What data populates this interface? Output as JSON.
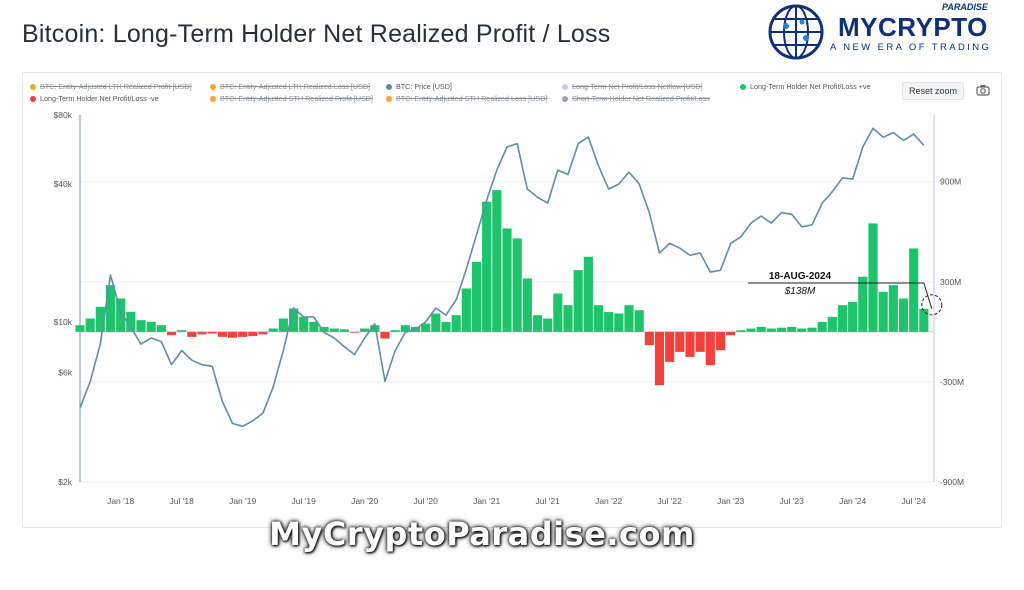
{
  "page": {
    "title": "Bitcoin: Long-Term Holder Net Realized Profit / Loss",
    "watermark": "MyCryptoParadise.com",
    "reset_zoom": "Reset zoom",
    "camera_icon": "camera-icon"
  },
  "brand": {
    "name": "MYCRYPTO",
    "name_top": "PARADISE",
    "tagline": "A NEW ERA OF TRADING",
    "icon": "globe-circuit-icon",
    "color": "#0f2f7a"
  },
  "legend": [
    {
      "label": "BTC: Entity-Adjusted LTH Realized Profit [USD]",
      "color": "#f5a623",
      "hidden": true
    },
    {
      "label": "BTC: Entity-Adjusted LTH Realized Loss [USD]",
      "color": "#f5a623",
      "hidden": true
    },
    {
      "label": "BTC: Price [USD]",
      "color": "#5f8ea6",
      "hidden": false
    },
    {
      "label": "Long-Term Net Profit/Loss Netflow [USD]",
      "color": "#c9c9f0",
      "hidden": true
    },
    {
      "label": "Long-Term Holder Net Profit/Loss +ve",
      "color": "#1ec46b",
      "hidden": false
    },
    {
      "label": "Long-Term Holder Net Profit/Loss -ve",
      "color": "#f0413c",
      "hidden": false
    },
    {
      "label": "BTC: Entity-Adjusted STH Realized Profit [USD]",
      "color": "#f5a623",
      "hidden": true
    },
    {
      "label": "BTC: Entity-Adjusted STH Realized Loss [USD]",
      "color": "#f5a623",
      "hidden": true
    },
    {
      "label": "Short-Term Holder Net Realized Profit/Loss",
      "color": "#a0a4aa",
      "hidden": true
    }
  ],
  "chart_data": {
    "type": "line+bar",
    "x_ticks": [
      "Jan '18",
      "Jul '18",
      "Jan '19",
      "Jul '19",
      "Jan '20",
      "Jul '20",
      "Jan '21",
      "Jul '21",
      "Jan '22",
      "Jul '22",
      "Jan '23",
      "Jul '23",
      "Jan '24",
      "Jul '24"
    ],
    "x_range": [
      "2017-09",
      "2024-09"
    ],
    "left_axis": {
      "scale": "log",
      "ticks": [
        "$80k",
        "$40k",
        "$10k",
        "$6k",
        "$2k"
      ],
      "tick_values": [
        80000,
        40000,
        10000,
        6000,
        2000
      ],
      "range": [
        2000,
        80000
      ]
    },
    "right_axis": {
      "scale": "linear",
      "ticks": [
        "900M",
        "300M",
        "-300M",
        "-900M"
      ],
      "tick_values": [
        900,
        300,
        -300,
        -900
      ],
      "range": [
        -900,
        1300
      ],
      "unit": "M USD"
    },
    "annotation": {
      "date": "18-AUG-2024",
      "value": "$138M",
      "value_num": 138
    },
    "price_series": {
      "name": "BTC: Price [USD]",
      "color": "#5f8ea6",
      "points": [
        [
          "2017-09",
          4200
        ],
        [
          "2017-10",
          5500
        ],
        [
          "2017-11",
          8000
        ],
        [
          "2017-12",
          16000
        ],
        [
          "2018-01",
          11000
        ],
        [
          "2018-02",
          9500
        ],
        [
          "2018-03",
          8000
        ],
        [
          "2018-04",
          8500
        ],
        [
          "2018-05",
          8200
        ],
        [
          "2018-06",
          6500
        ],
        [
          "2018-07",
          7500
        ],
        [
          "2018-08",
          6800
        ],
        [
          "2018-09",
          6500
        ],
        [
          "2018-10",
          6400
        ],
        [
          "2018-11",
          4500
        ],
        [
          "2018-12",
          3600
        ],
        [
          "2019-01",
          3500
        ],
        [
          "2019-02",
          3700
        ],
        [
          "2019-03",
          4000
        ],
        [
          "2019-04",
          5200
        ],
        [
          "2019-05",
          7500
        ],
        [
          "2019-06",
          11500
        ],
        [
          "2019-07",
          10500
        ],
        [
          "2019-08",
          10500
        ],
        [
          "2019-09",
          9000
        ],
        [
          "2019-10",
          8500
        ],
        [
          "2019-11",
          7800
        ],
        [
          "2019-12",
          7200
        ],
        [
          "2020-01",
          8500
        ],
        [
          "2020-02",
          9800
        ],
        [
          "2020-03",
          5500
        ],
        [
          "2020-04",
          7500
        ],
        [
          "2020-05",
          9000
        ],
        [
          "2020-06",
          9300
        ],
        [
          "2020-07",
          10000
        ],
        [
          "2020-08",
          11500
        ],
        [
          "2020-09",
          10700
        ],
        [
          "2020-10",
          12500
        ],
        [
          "2020-11",
          17000
        ],
        [
          "2020-12",
          24000
        ],
        [
          "2021-01",
          34000
        ],
        [
          "2021-02",
          46000
        ],
        [
          "2021-03",
          58000
        ],
        [
          "2021-04",
          60000
        ],
        [
          "2021-05",
          38000
        ],
        [
          "2021-06",
          35000
        ],
        [
          "2021-07",
          33000
        ],
        [
          "2021-08",
          46000
        ],
        [
          "2021-09",
          44000
        ],
        [
          "2021-10",
          60000
        ],
        [
          "2021-11",
          64000
        ],
        [
          "2021-12",
          48000
        ],
        [
          "2022-01",
          38000
        ],
        [
          "2022-02",
          40000
        ],
        [
          "2022-03",
          45000
        ],
        [
          "2022-04",
          40000
        ],
        [
          "2022-05",
          30000
        ],
        [
          "2022-06",
          20000
        ],
        [
          "2022-07",
          22000
        ],
        [
          "2022-08",
          21000
        ],
        [
          "2022-09",
          19500
        ],
        [
          "2022-10",
          20000
        ],
        [
          "2022-11",
          16500
        ],
        [
          "2022-12",
          16800
        ],
        [
          "2023-01",
          22000
        ],
        [
          "2023-02",
          23500
        ],
        [
          "2023-03",
          27000
        ],
        [
          "2023-04",
          29000
        ],
        [
          "2023-05",
          27000
        ],
        [
          "2023-06",
          30000
        ],
        [
          "2023-07",
          29500
        ],
        [
          "2023-08",
          26000
        ],
        [
          "2023-09",
          26500
        ],
        [
          "2023-10",
          33000
        ],
        [
          "2023-11",
          37000
        ],
        [
          "2023-12",
          42500
        ],
        [
          "2024-01",
          42000
        ],
        [
          "2024-02",
          58000
        ],
        [
          "2024-03",
          70000
        ],
        [
          "2024-04",
          64000
        ],
        [
          "2024-05",
          67000
        ],
        [
          "2024-06",
          62000
        ],
        [
          "2024-07",
          66000
        ],
        [
          "2024-08",
          59000
        ]
      ]
    },
    "netflow_series": {
      "name": "Long-Term Holder Net Profit/Loss",
      "positive_color": "#1ec46b",
      "negative_color": "#f0413c",
      "points_musd": [
        [
          "2017-09",
          40
        ],
        [
          "2017-10",
          80
        ],
        [
          "2017-11",
          150
        ],
        [
          "2017-12",
          280
        ],
        [
          "2018-01",
          200
        ],
        [
          "2018-02",
          120
        ],
        [
          "2018-03",
          70
        ],
        [
          "2018-04",
          60
        ],
        [
          "2018-05",
          40
        ],
        [
          "2018-06",
          -20
        ],
        [
          "2018-07",
          10
        ],
        [
          "2018-08",
          -30
        ],
        [
          "2018-09",
          -15
        ],
        [
          "2018-10",
          -10
        ],
        [
          "2018-11",
          -30
        ],
        [
          "2018-12",
          -35
        ],
        [
          "2019-01",
          -30
        ],
        [
          "2019-02",
          -25
        ],
        [
          "2019-03",
          -15
        ],
        [
          "2019-04",
          20
        ],
        [
          "2019-05",
          80
        ],
        [
          "2019-06",
          140
        ],
        [
          "2019-07",
          90
        ],
        [
          "2019-08",
          60
        ],
        [
          "2019-09",
          30
        ],
        [
          "2019-10",
          20
        ],
        [
          "2019-11",
          15
        ],
        [
          "2019-12",
          -5
        ],
        [
          "2020-01",
          20
        ],
        [
          "2020-02",
          40
        ],
        [
          "2020-03",
          -40
        ],
        [
          "2020-04",
          10
        ],
        [
          "2020-05",
          40
        ],
        [
          "2020-06",
          30
        ],
        [
          "2020-07",
          50
        ],
        [
          "2020-08",
          110
        ],
        [
          "2020-09",
          60
        ],
        [
          "2020-10",
          100
        ],
        [
          "2020-11",
          260
        ],
        [
          "2020-12",
          420
        ],
        [
          "2021-01",
          780
        ],
        [
          "2021-02",
          850
        ],
        [
          "2021-03",
          620
        ],
        [
          "2021-04",
          560
        ],
        [
          "2021-05",
          320
        ],
        [
          "2021-06",
          100
        ],
        [
          "2021-07",
          80
        ],
        [
          "2021-08",
          230
        ],
        [
          "2021-09",
          160
        ],
        [
          "2021-10",
          370
        ],
        [
          "2021-11",
          450
        ],
        [
          "2021-12",
          160
        ],
        [
          "2022-01",
          120
        ],
        [
          "2022-02",
          110
        ],
        [
          "2022-03",
          160
        ],
        [
          "2022-04",
          130
        ],
        [
          "2022-05",
          -80
        ],
        [
          "2022-06",
          -320
        ],
        [
          "2022-07",
          -180
        ],
        [
          "2022-08",
          -120
        ],
        [
          "2022-09",
          -150
        ],
        [
          "2022-10",
          -120
        ],
        [
          "2022-11",
          -200
        ],
        [
          "2022-12",
          -110
        ],
        [
          "2023-01",
          -20
        ],
        [
          "2023-02",
          10
        ],
        [
          "2023-03",
          20
        ],
        [
          "2023-04",
          30
        ],
        [
          "2023-05",
          20
        ],
        [
          "2023-06",
          25
        ],
        [
          "2023-07",
          30
        ],
        [
          "2023-08",
          20
        ],
        [
          "2023-09",
          25
        ],
        [
          "2023-10",
          60
        ],
        [
          "2023-11",
          90
        ],
        [
          "2023-12",
          160
        ],
        [
          "2024-01",
          180
        ],
        [
          "2024-02",
          330
        ],
        [
          "2024-03",
          650
        ],
        [
          "2024-04",
          240
        ],
        [
          "2024-05",
          280
        ],
        [
          "2024-06",
          200
        ],
        [
          "2024-07",
          500
        ],
        [
          "2024-08",
          138
        ]
      ]
    }
  }
}
